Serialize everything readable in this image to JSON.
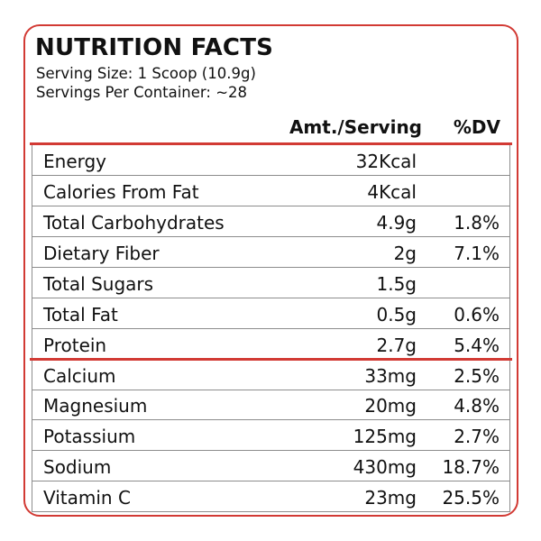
{
  "label": {
    "title": "NUTRITION FACTS",
    "serving_size": "Serving Size: 1 Scoop (10.9g)",
    "servings_per_container": "Servings Per Container: ~28",
    "header_amount": "Amt./Serving",
    "header_dv": "%DV"
  },
  "rows": [
    {
      "name": "Energy",
      "amount": "32Kcal",
      "dv": ""
    },
    {
      "name": "Calories From Fat",
      "amount": "4Kcal",
      "dv": ""
    },
    {
      "name": "Total Carbohydrates",
      "amount": "4.9g",
      "dv": "1.8%"
    },
    {
      "name": "Dietary Fiber",
      "amount": "2g",
      "dv": "7.1%"
    },
    {
      "name": "Total Sugars",
      "amount": "1.5g",
      "dv": ""
    },
    {
      "name": "Total Fat",
      "amount": "0.5g",
      "dv": "0.6%"
    },
    {
      "name": "Protein",
      "amount": "2.7g",
      "dv": "5.4%"
    },
    {
      "name": "Calcium",
      "amount": "33mg",
      "dv": "2.5%"
    },
    {
      "name": "Magnesium",
      "amount": "20mg",
      "dv": "4.8%"
    },
    {
      "name": "Potassium",
      "amount": "125mg",
      "dv": "2.7%"
    },
    {
      "name": "Sodium",
      "amount": "430mg",
      "dv": "18.7%"
    },
    {
      "name": "Vitamin C",
      "amount": "23mg",
      "dv": "25.5%"
    }
  ],
  "colors": {
    "accent": "#d23a34",
    "text": "#111111",
    "divider": "#8c8c8c"
  }
}
